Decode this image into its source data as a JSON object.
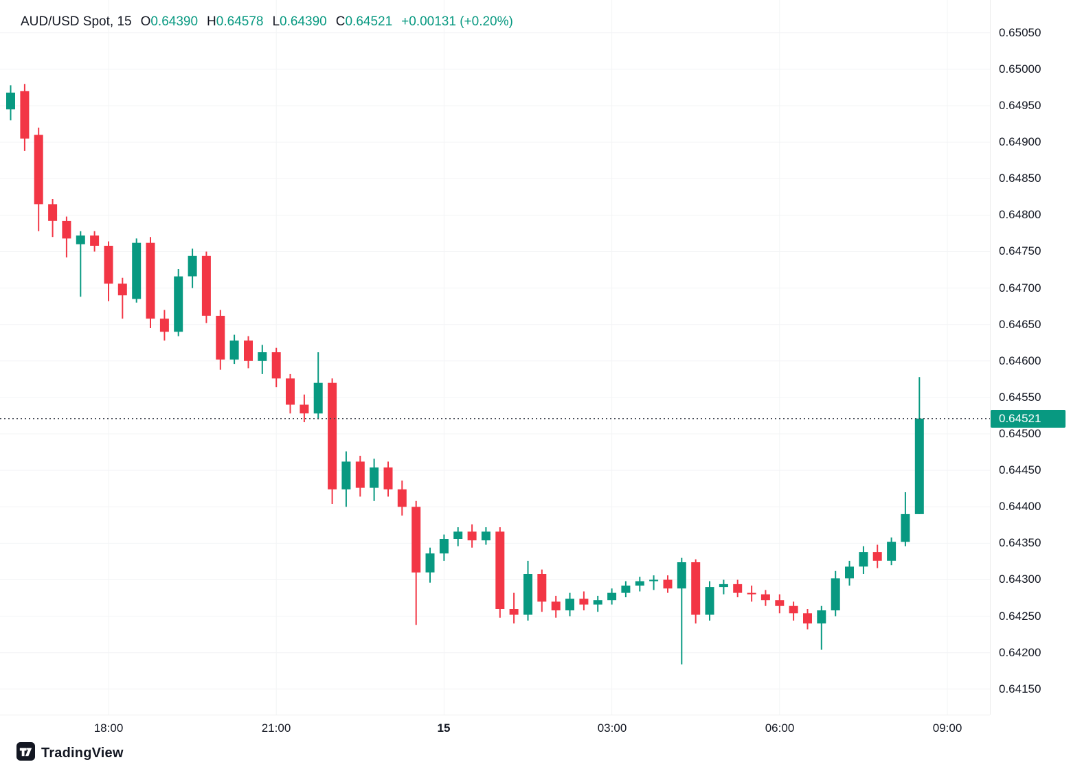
{
  "header": {
    "symbol": "AUD/USD Spot",
    "separator": ", ",
    "timeframe": "15",
    "ohlc": [
      {
        "label": "O",
        "value": "0.64390"
      },
      {
        "label": "H",
        "value": "0.64578"
      },
      {
        "label": "L",
        "value": "0.64390"
      },
      {
        "label": "C",
        "value": "0.64521"
      }
    ],
    "change": "+0.00131 (+0.20%)"
  },
  "price_axis": {
    "ticks": [
      "0.65050",
      "0.65000",
      "0.64950",
      "0.64900",
      "0.64850",
      "0.64800",
      "0.64750",
      "0.64700",
      "0.64650",
      "0.64600",
      "0.64550",
      "0.64500",
      "0.64450",
      "0.64400",
      "0.64350",
      "0.64300",
      "0.64250",
      "0.64200",
      "0.64150"
    ],
    "current_price_label": "0.64521"
  },
  "time_axis": {
    "labels": [
      {
        "text": "18:00",
        "slot": 7,
        "bold": false
      },
      {
        "text": "21:00",
        "slot": 19,
        "bold": false
      },
      {
        "text": "15",
        "slot": 31,
        "bold": true
      },
      {
        "text": "03:00",
        "slot": 43,
        "bold": false
      },
      {
        "text": "06:00",
        "slot": 55,
        "bold": false
      },
      {
        "text": "09:00",
        "slot": 67,
        "bold": false
      }
    ]
  },
  "footer": {
    "brand": "TradingView"
  },
  "colors": {
    "up": "#089981",
    "down": "#f23645",
    "text": "#131722",
    "badge_bg": "#089981",
    "badge_text": "#ffffff",
    "grid": "#f3f4f6",
    "current_price_line": "#40444f"
  },
  "chart_data": {
    "type": "candlestick",
    "title": "AUD/USD Spot, 15",
    "interval": "15m",
    "last_close": 0.64521,
    "change_text": "+0.00131 (+0.20%)",
    "price_range_visible": [
      0.64115,
      0.65095
    ],
    "y_tick_labels": [
      "0.65050",
      "0.65000",
      "0.64950",
      "0.64900",
      "0.64850",
      "0.64800",
      "0.64750",
      "0.64700",
      "0.64650",
      "0.64600",
      "0.64550",
      "0.64500",
      "0.64450",
      "0.64400",
      "0.64350",
      "0.64300",
      "0.64250",
      "0.64200",
      "0.64150"
    ],
    "x_tick_labels": [
      "18:00",
      "21:00",
      "15",
      "03:00",
      "06:00",
      "09:00"
    ],
    "columns": [
      "time",
      "open",
      "high",
      "low",
      "close"
    ],
    "candles": [
      [
        "16:15",
        0.64945,
        0.64978,
        0.6493,
        0.64968
      ],
      [
        "16:30",
        0.6497,
        0.6498,
        0.64888,
        0.64905
      ],
      [
        "16:45",
        0.6491,
        0.6492,
        0.64778,
        0.64815
      ],
      [
        "17:00",
        0.64815,
        0.64822,
        0.6477,
        0.64792
      ],
      [
        "17:15",
        0.64792,
        0.64798,
        0.64742,
        0.64768
      ],
      [
        "17:30",
        0.6476,
        0.64778,
        0.64688,
        0.64772
      ],
      [
        "17:45",
        0.64772,
        0.64778,
        0.6475,
        0.64758
      ],
      [
        "18:00",
        0.64758,
        0.64764,
        0.64682,
        0.64706
      ],
      [
        "18:15",
        0.64706,
        0.64714,
        0.64658,
        0.6469
      ],
      [
        "18:30",
        0.64685,
        0.64768,
        0.6468,
        0.64762
      ],
      [
        "18:45",
        0.64762,
        0.6477,
        0.64645,
        0.64658
      ],
      [
        "19:00",
        0.64658,
        0.6467,
        0.64628,
        0.6464
      ],
      [
        "19:15",
        0.6464,
        0.64726,
        0.64634,
        0.64716
      ],
      [
        "19:30",
        0.64716,
        0.64754,
        0.647,
        0.64744
      ],
      [
        "19:45",
        0.64744,
        0.6475,
        0.64652,
        0.64662
      ],
      [
        "20:00",
        0.64662,
        0.6467,
        0.64588,
        0.64602
      ],
      [
        "20:15",
        0.64602,
        0.64636,
        0.64596,
        0.64628
      ],
      [
        "20:30",
        0.64628,
        0.64634,
        0.6459,
        0.646
      ],
      [
        "20:45",
        0.646,
        0.64622,
        0.64582,
        0.64612
      ],
      [
        "21:00",
        0.64612,
        0.64618,
        0.64564,
        0.64576
      ],
      [
        "21:15",
        0.64576,
        0.64582,
        0.64528,
        0.6454
      ],
      [
        "21:30",
        0.6454,
        0.64554,
        0.64516,
        0.64528
      ],
      [
        "21:45",
        0.64528,
        0.64612,
        0.6452,
        0.6457
      ],
      [
        "22:00",
        0.6457,
        0.64576,
        0.64404,
        0.64424
      ],
      [
        "22:15",
        0.64424,
        0.64476,
        0.644,
        0.64462
      ],
      [
        "22:30",
        0.64462,
        0.6447,
        0.64414,
        0.64426
      ],
      [
        "22:45",
        0.64426,
        0.64466,
        0.64408,
        0.64454
      ],
      [
        "23:00",
        0.64454,
        0.64462,
        0.64414,
        0.64424
      ],
      [
        "23:15",
        0.64424,
        0.64436,
        0.64388,
        0.644
      ],
      [
        "23:30",
        0.644,
        0.64408,
        0.64238,
        0.6431
      ],
      [
        "23:45",
        0.6431,
        0.64344,
        0.64296,
        0.64336
      ],
      [
        "00:00",
        0.64336,
        0.64362,
        0.64326,
        0.64356
      ],
      [
        "00:15",
        0.64356,
        0.64372,
        0.64346,
        0.64366
      ],
      [
        "00:30",
        0.64366,
        0.64376,
        0.64344,
        0.64354
      ],
      [
        "00:45",
        0.64354,
        0.64372,
        0.64348,
        0.64366
      ],
      [
        "01:00",
        0.64366,
        0.64372,
        0.64248,
        0.6426
      ],
      [
        "01:15",
        0.6426,
        0.64282,
        0.6424,
        0.64252
      ],
      [
        "01:30",
        0.64252,
        0.64326,
        0.64244,
        0.64308
      ],
      [
        "01:45",
        0.64308,
        0.64314,
        0.64256,
        0.6427
      ],
      [
        "02:00",
        0.6427,
        0.64278,
        0.64248,
        0.64258
      ],
      [
        "02:15",
        0.64258,
        0.64282,
        0.6425,
        0.64274
      ],
      [
        "02:30",
        0.64274,
        0.64284,
        0.64258,
        0.64266
      ],
      [
        "02:45",
        0.64266,
        0.64278,
        0.64256,
        0.64272
      ],
      [
        "03:00",
        0.64272,
        0.64288,
        0.64266,
        0.64282
      ],
      [
        "03:15",
        0.64282,
        0.64298,
        0.64276,
        0.64292
      ],
      [
        "03:30",
        0.64292,
        0.64304,
        0.64284,
        0.64298
      ],
      [
        "03:45",
        0.64298,
        0.64306,
        0.64286,
        0.643
      ],
      [
        "04:00",
        0.643,
        0.64306,
        0.64282,
        0.64288
      ],
      [
        "04:15",
        0.64288,
        0.6433,
        0.64184,
        0.64324
      ],
      [
        "04:30",
        0.64324,
        0.64328,
        0.6424,
        0.64252
      ],
      [
        "04:45",
        0.64252,
        0.64298,
        0.64244,
        0.6429
      ],
      [
        "05:00",
        0.6429,
        0.643,
        0.6428,
        0.64294
      ],
      [
        "05:15",
        0.64294,
        0.643,
        0.64276,
        0.64282
      ],
      [
        "05:30",
        0.64282,
        0.64292,
        0.6427,
        0.6428
      ],
      [
        "05:45",
        0.6428,
        0.64286,
        0.64264,
        0.64272
      ],
      [
        "06:00",
        0.64272,
        0.6428,
        0.64254,
        0.64264
      ],
      [
        "06:15",
        0.64264,
        0.6427,
        0.64244,
        0.64254
      ],
      [
        "06:30",
        0.64254,
        0.6426,
        0.64232,
        0.6424
      ],
      [
        "06:45",
        0.6424,
        0.64264,
        0.64204,
        0.64258
      ],
      [
        "07:00",
        0.64258,
        0.64312,
        0.6425,
        0.64302
      ],
      [
        "07:15",
        0.64302,
        0.64326,
        0.64292,
        0.64318
      ],
      [
        "07:30",
        0.64318,
        0.64346,
        0.64308,
        0.64338
      ],
      [
        "07:45",
        0.64338,
        0.64348,
        0.64316,
        0.64326
      ],
      [
        "08:00",
        0.64326,
        0.64358,
        0.6432,
        0.64352
      ],
      [
        "08:15",
        0.64352,
        0.6442,
        0.64346,
        0.6439
      ],
      [
        "08:30",
        0.6439,
        0.64578,
        0.6439,
        0.64521
      ]
    ]
  }
}
